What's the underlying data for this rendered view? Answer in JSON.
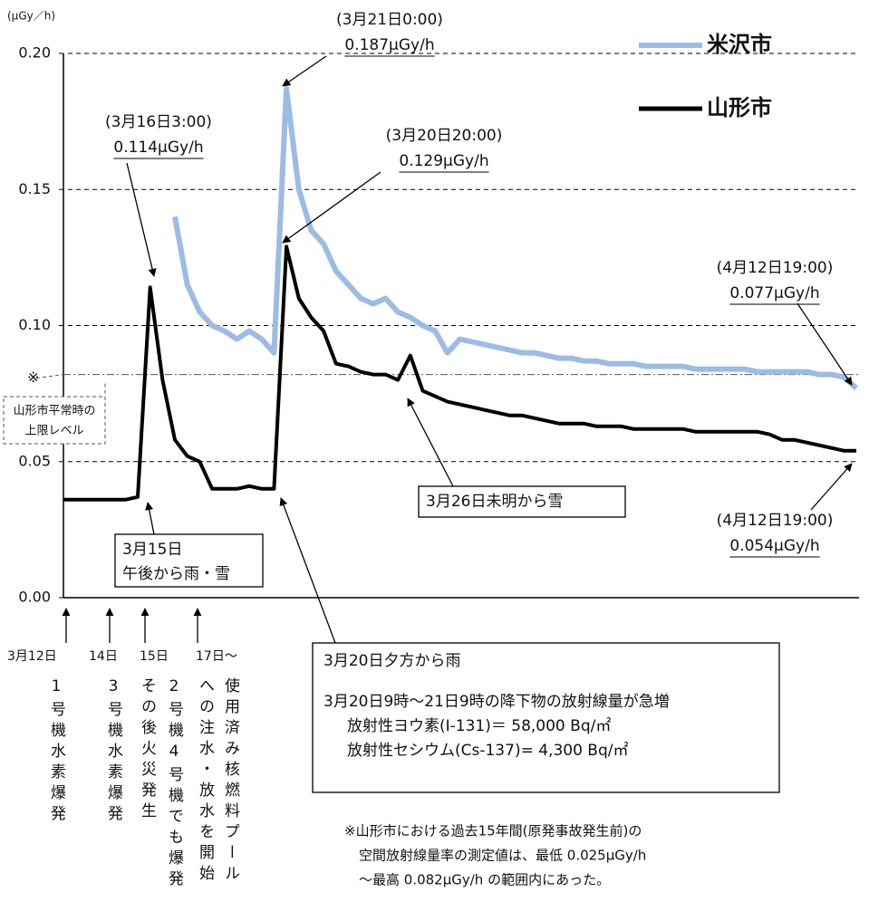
{
  "chart_data": {
    "type": "line",
    "y_unit": "(μGy／h)",
    "categories": [
      null,
      null,
      null,
      null,
      null,
      null,
      null,
      null,
      null,
      null,
      null,
      null,
      null,
      null,
      null,
      null,
      null,
      null,
      null,
      null,
      null,
      null,
      null,
      null,
      null,
      null,
      null,
      null,
      null,
      null,
      null,
      null,
      null,
      null,
      null,
      null,
      null,
      null,
      null,
      null,
      null,
      null,
      null,
      null,
      null,
      null,
      null,
      null,
      null,
      null,
      null,
      null,
      null,
      null,
      null,
      null,
      null,
      null,
      null,
      null,
      null,
      null,
      null,
      null,
      null
    ],
    "series": [
      {
        "name": "米沢市",
        "color": "#9cbbe6",
        "values": [
          null,
          null,
          null,
          null,
          null,
          null,
          null,
          null,
          null,
          0.14,
          0.115,
          0.105,
          0.1,
          0.098,
          0.095,
          0.098,
          0.095,
          0.09,
          0.187,
          0.15,
          0.135,
          0.13,
          0.12,
          0.115,
          0.11,
          0.108,
          0.11,
          0.105,
          0.103,
          0.1,
          0.098,
          0.09,
          0.095,
          0.094,
          0.093,
          0.092,
          0.091,
          0.09,
          0.09,
          0.089,
          0.088,
          0.088,
          0.087,
          0.087,
          0.086,
          0.086,
          0.086,
          0.085,
          0.085,
          0.085,
          0.085,
          0.084,
          0.084,
          0.084,
          0.084,
          0.084,
          0.083,
          0.083,
          0.083,
          0.083,
          0.083,
          0.082,
          0.082,
          0.081,
          0.077
        ]
      },
      {
        "name": "山形市",
        "color": "#000000",
        "values": [
          0.036,
          0.036,
          0.036,
          0.036,
          0.036,
          0.036,
          0.037,
          0.114,
          0.08,
          0.058,
          0.052,
          0.05,
          0.04,
          0.04,
          0.04,
          0.041,
          0.04,
          0.04,
          0.129,
          0.11,
          0.103,
          0.098,
          0.086,
          0.085,
          0.083,
          0.082,
          0.082,
          0.08,
          0.089,
          0.076,
          0.074,
          0.072,
          0.071,
          0.07,
          0.069,
          0.068,
          0.067,
          0.067,
          0.066,
          0.065,
          0.064,
          0.064,
          0.064,
          0.063,
          0.063,
          0.063,
          0.062,
          0.062,
          0.062,
          0.062,
          0.062,
          0.061,
          0.061,
          0.061,
          0.061,
          0.061,
          0.061,
          0.06,
          0.058,
          0.058,
          0.057,
          0.056,
          0.055,
          0.054,
          0.054
        ]
      }
    ],
    "ylim": [
      0,
      0.2
    ],
    "yticks": [
      {
        "value": 0,
        "label": "0.00"
      },
      {
        "value": 0.05,
        "label": "0.05"
      },
      {
        "value": 0.1,
        "label": "0.10"
      },
      {
        "value": 0.15,
        "label": "0.15"
      },
      {
        "value": 0.2,
        "label": "0.20"
      }
    ],
    "grid": true,
    "legend": "top-right",
    "reference_line": {
      "value": 0.082,
      "marker": "※",
      "label": [
        "山形市平常時の",
        "上限レベル"
      ]
    },
    "annotations": [
      {
        "lines": [
          "(3月21日0:00)",
          "0.187μGy/h"
        ]
      },
      {
        "lines": [
          "(3月16日3:00)",
          "0.114μGy/h"
        ]
      },
      {
        "lines": [
          "(3月20日20:00)",
          "0.129μGy/h"
        ]
      },
      {
        "lines": [
          "(4月12日19:00)",
          "0.077μGy/h"
        ]
      },
      {
        "lines": [
          "(4月12日19:00)",
          "0.054μGy/h"
        ]
      }
    ],
    "boxes": [
      {
        "lines": [
          "3月26日未明から雪"
        ]
      },
      {
        "lines": [
          "3月15日",
          "午後から雨・雪"
        ]
      },
      {
        "lines": [
          "3月20日夕方から雨",
          "3月20日9時～21日9時の降下物の放射線量が急増",
          "放射性ヨウ素(I-131)＝ 58,000 Bq/㎡",
          "放射性セシウム(Cs-137)= 4,300 Bq/㎡"
        ]
      }
    ],
    "events": [
      {
        "date": "3月12日",
        "columns": [
          "1号機水素爆発"
        ]
      },
      {
        "date": "14日",
        "columns": [
          "3号機水素爆発"
        ]
      },
      {
        "date": "15日",
        "columns": [
          "その後火災発生",
          "2号機4号機でも爆発"
        ]
      },
      {
        "date": "17日～",
        "columns": [
          "への注水・放水を開始",
          "使用済み核燃料プール"
        ]
      }
    ],
    "note": [
      "※山形市における過去15年間(原発事故発生前)の",
      "空間放射線量率の測定値は、最低 0.025μGy/h",
      "～最高 0.082μGy/h の範囲内にあった。"
    ]
  }
}
